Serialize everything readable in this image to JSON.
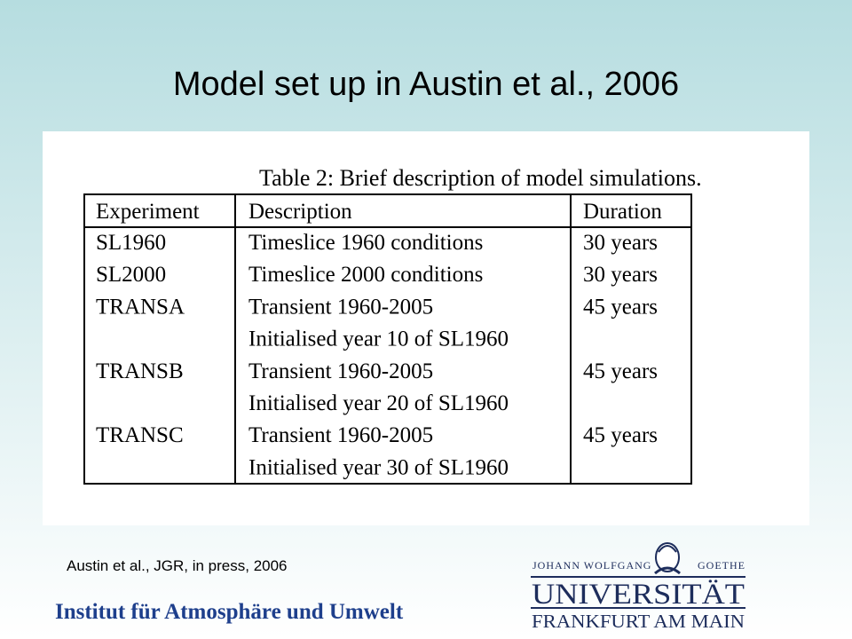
{
  "title": "Model set up in Austin et al., 2006",
  "table": {
    "caption": "Table 2: Brief description of model simulations.",
    "header": [
      "Experiment",
      "Description",
      "Duration"
    ],
    "rows": [
      {
        "experiment": "SL1960",
        "description": [
          "Timeslice 1960 conditions"
        ],
        "duration": "30 years"
      },
      {
        "experiment": "SL2000",
        "description": [
          "Timeslice 2000 conditions"
        ],
        "duration": "30 years"
      },
      {
        "experiment": "TRANSA",
        "description": [
          "Transient 1960-2005",
          "Initialised year 10 of SL1960"
        ],
        "duration": "45 years"
      },
      {
        "experiment": "TRANSB",
        "description": [
          "Transient 1960-2005",
          "Initialised year 20 of SL1960"
        ],
        "duration": "45 years"
      },
      {
        "experiment": "TRANSC",
        "description": [
          "Transient 1960-2005",
          "Initialised year 30 of SL1960"
        ],
        "duration": "45 years"
      }
    ]
  },
  "citation": "Austin et al., JGR, in press, 2006",
  "institute": "Institut für Atmosphäre und Umwelt",
  "logo": {
    "top_left": "JOHANN WOLFGANG",
    "top_right": "GOETHE",
    "name": "UNIVERSITÄT",
    "city": "FRANKFURT AM MAIN"
  }
}
